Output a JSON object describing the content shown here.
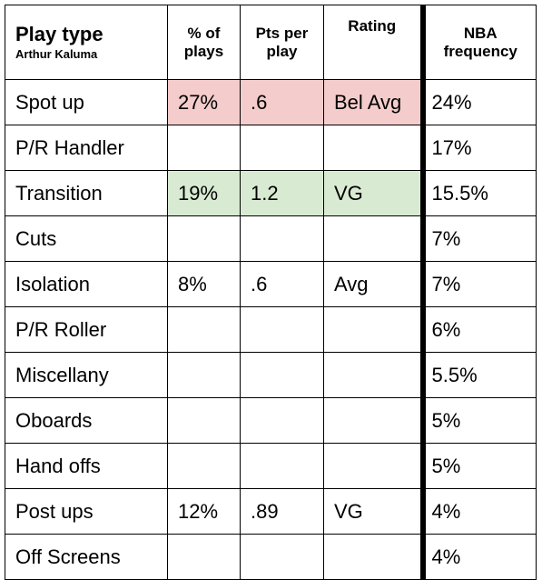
{
  "header": {
    "play_type": "Play type",
    "player": "Arthur Kaluma",
    "pct_of_plays": "% of plays",
    "pts_per_play": "Pts per play",
    "rating": "Rating",
    "nba_frequency": "NBA frequency"
  },
  "rows": [
    {
      "play": "Spot up",
      "pct": "27%",
      "ppp": ".6",
      "rating": "Bel Avg",
      "nba": "24%"
    },
    {
      "play": "P/R Handler",
      "pct": "",
      "ppp": "",
      "rating": "",
      "nba": "17%"
    },
    {
      "play": "Transition",
      "pct": "19%",
      "ppp": "1.2",
      "rating": "VG",
      "nba": "15.5%"
    },
    {
      "play": "Cuts",
      "pct": "",
      "ppp": "",
      "rating": "",
      "nba": "7%"
    },
    {
      "play": "Isolation",
      "pct": "8%",
      "ppp": ".6",
      "rating": "Avg",
      "nba": "7%"
    },
    {
      "play": "P/R Roller",
      "pct": "",
      "ppp": "",
      "rating": "",
      "nba": "6%"
    },
    {
      "play": "Miscellany",
      "pct": "",
      "ppp": "",
      "rating": "",
      "nba": "5.5%"
    },
    {
      "play": "Oboards",
      "pct": "",
      "ppp": "",
      "rating": "",
      "nba": "5%"
    },
    {
      "play": "Hand offs",
      "pct": "",
      "ppp": "",
      "rating": "",
      "nba": "5%"
    },
    {
      "play": "Post ups",
      "pct": "12%",
      "ppp": ".89",
      "rating": "VG",
      "nba": "4%"
    },
    {
      "play": "Off Screens",
      "pct": "",
      "ppp": "",
      "rating": "",
      "nba": "4%"
    }
  ],
  "colors": {
    "below_average_highlight": "#f4cccc",
    "very_good_highlight": "#d9ead3"
  }
}
